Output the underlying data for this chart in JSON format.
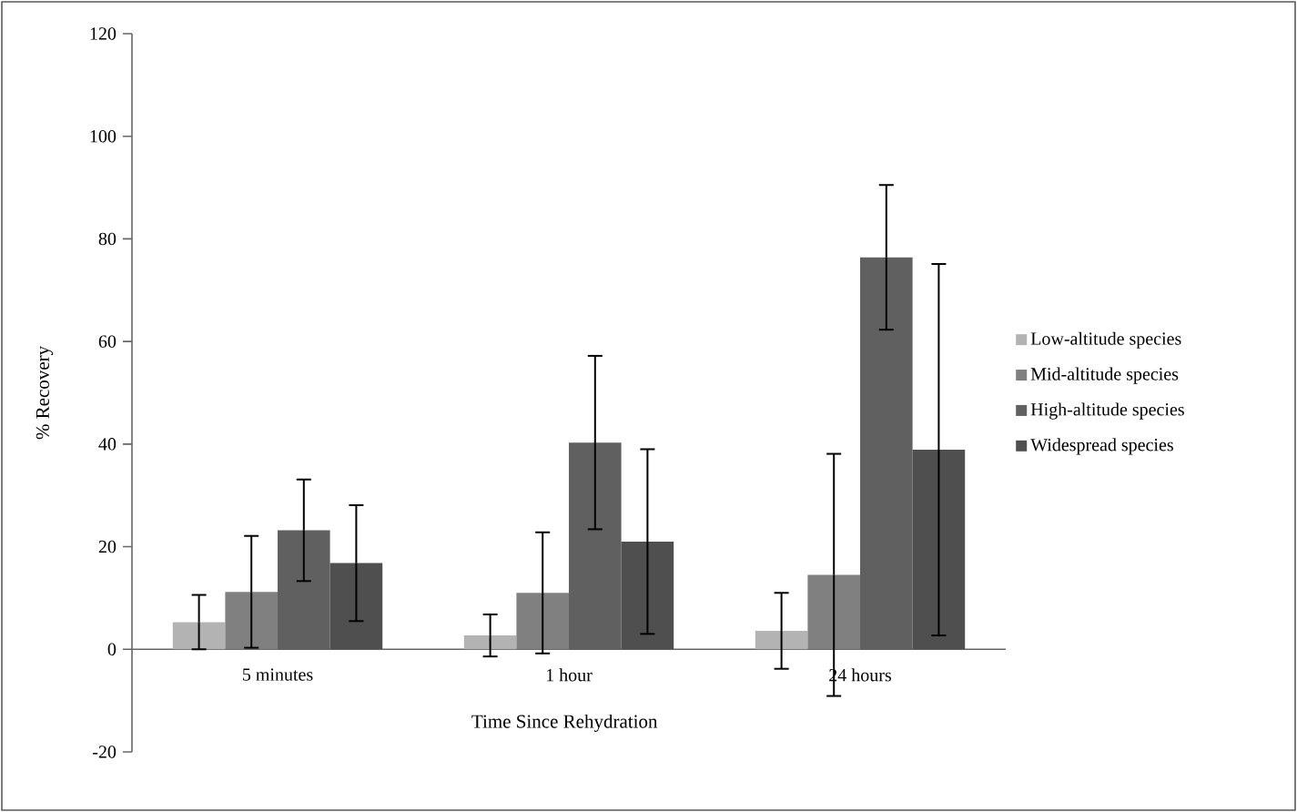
{
  "chart_data": {
    "type": "bar",
    "xlabel": "Time Since Rehydration",
    "ylabel": "% Recovery",
    "categories": [
      "5 minutes",
      "1 hour",
      "24 hours"
    ],
    "series": [
      {
        "name": "Low-altitude species",
        "color": "#b3b3b3",
        "values": [
          5.3,
          2.7,
          3.6
        ],
        "errors": [
          5.3,
          4.1,
          7.4
        ]
      },
      {
        "name": "Mid-altitude species",
        "color": "#808080",
        "values": [
          11.2,
          11.0,
          14.5
        ],
        "errors": [
          10.9,
          11.8,
          23.6
        ]
      },
      {
        "name": "High-altitude species",
        "color": "#606060",
        "values": [
          23.2,
          40.3,
          76.4
        ],
        "errors": [
          9.9,
          16.9,
          14.1
        ]
      },
      {
        "name": "Widespread species",
        "color": "#4f4f4f",
        "values": [
          16.8,
          21.0,
          38.9
        ],
        "errors": [
          11.3,
          18.0,
          36.2
        ]
      }
    ],
    "ylim": [
      -20,
      120
    ],
    "yticks": [
      -20,
      0,
      20,
      40,
      60,
      80,
      100,
      120
    ],
    "legend": "right"
  }
}
